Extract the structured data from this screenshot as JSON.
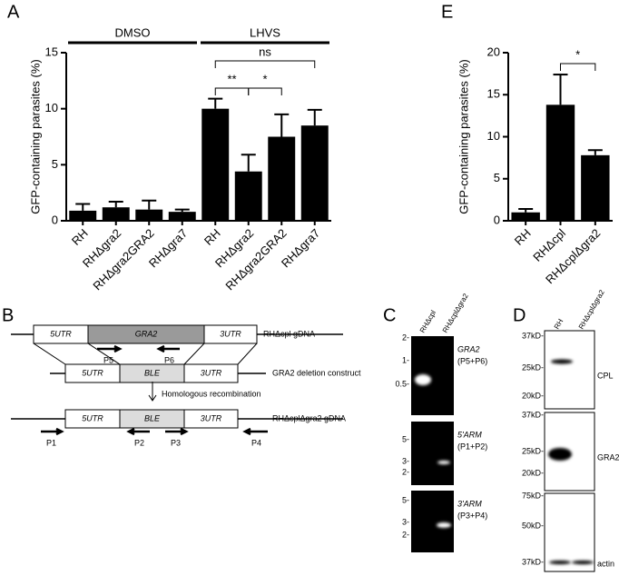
{
  "chart_data": [
    {
      "type": "bar",
      "panel_label": "A",
      "y_label": "GFP-containing parasites (%)",
      "group_labels": [
        "DMSO",
        "LHVS"
      ],
      "categories": [
        "RH",
        "RHΔgra2",
        "RHΔgra2GRA2",
        "RHΔgra7",
        "RH",
        "RHΔgra2",
        "RHΔgra2GRA2",
        "RHΔgra7"
      ],
      "values": [
        0.9,
        1.2,
        1.0,
        0.8,
        10.0,
        4.4,
        7.5,
        8.5
      ],
      "errors": [
        0.6,
        0.5,
        0.8,
        0.2,
        0.9,
        1.5,
        2.0,
        1.4
      ],
      "color": "#000000",
      "ylim": [
        0,
        15
      ],
      "yticks": [
        0,
        5,
        10,
        15
      ],
      "annotations": [
        "**",
        "*",
        "ns"
      ]
    },
    {
      "type": "bar",
      "panel_label": "E",
      "y_label": "GFP-containing parasites (%)",
      "categories": [
        "RH",
        "RHΔcpl",
        "RHΔcplΔgra2"
      ],
      "values": [
        1.0,
        13.8,
        7.8
      ],
      "errors": [
        0.4,
        3.6,
        0.6
      ],
      "color": "#000000",
      "ylim": [
        0,
        20
      ],
      "yticks": [
        0,
        5,
        10,
        15,
        20
      ],
      "annotations": [
        "*"
      ]
    }
  ],
  "diagram_b": {
    "panel_label": "B",
    "rows": [
      {
        "segments": [
          "5UTR",
          "GRA2",
          "3UTR"
        ],
        "label": "RHΔcpl gDNA"
      },
      {
        "segments": [
          "5UTR",
          "BLE",
          "3UTR"
        ],
        "label": "GRA2 deletion construct"
      },
      {
        "segments": [
          "5UTR",
          "BLE",
          "3UTR"
        ],
        "label": "RHΔcplΔgra2 gDNA"
      }
    ],
    "arrow_label": "Homologous recombination",
    "primers": [
      "P5",
      "P6",
      "P1",
      "P2",
      "P3",
      "P4"
    ]
  },
  "gel_c": {
    "panel_label": "C",
    "lanes": [
      "RHΔcpl",
      "RHΔcplΔgra2"
    ],
    "gels": [
      {
        "ticks": [
          "2-",
          "1-",
          "0.5-"
        ],
        "label": "GRA2",
        "primers": "(P5+P6)"
      },
      {
        "ticks": [
          "5-",
          "3-",
          "2-"
        ],
        "label": "5'ARM",
        "primers": "(P1+P2)"
      },
      {
        "ticks": [
          "5-",
          "3-",
          "2-"
        ],
        "label": "3'ARM",
        "primers": "(P3+P4)"
      }
    ]
  },
  "blot_d": {
    "panel_label": "D",
    "lanes": [
      "RH",
      "RHΔcplΔgra2"
    ],
    "blots": [
      {
        "ticks": [
          "37kD-",
          "25kD-",
          "20kD-"
        ],
        "label": "CPL"
      },
      {
        "ticks": [
          "37kD-",
          "25kD-",
          "20kD-"
        ],
        "label": "GRA2"
      },
      {
        "ticks": [
          "75kD-",
          "50kD-",
          "37kD-"
        ],
        "label": "actin"
      }
    ]
  }
}
